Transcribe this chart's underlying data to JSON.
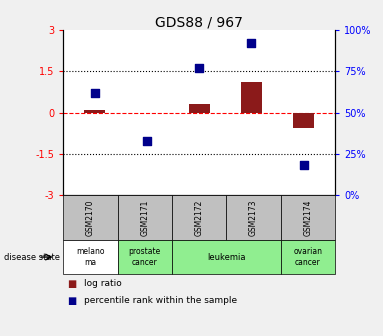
{
  "title": "GDS88 / 967",
  "samples": [
    "GSM2170",
    "GSM2171",
    "GSM2172",
    "GSM2173",
    "GSM2174"
  ],
  "log_ratios": [
    0.1,
    0.0,
    0.3,
    1.1,
    -0.55
  ],
  "percentile_ranks": [
    62,
    33,
    77,
    92,
    18
  ],
  "ylim_left": [
    -3,
    3
  ],
  "ylim_right": [
    0,
    100
  ],
  "yticks_left": [
    -3,
    -1.5,
    0,
    1.5,
    3
  ],
  "yticks_right": [
    0,
    25,
    50,
    75,
    100
  ],
  "ytick_labels_left": [
    "-3",
    "-1.5",
    "0",
    "1.5",
    "3"
  ],
  "ytick_labels_right": [
    "0%",
    "25%",
    "50%",
    "75%",
    "100%"
  ],
  "hlines": [
    1.5,
    -1.5
  ],
  "bar_color": "#8B1A1A",
  "dot_color": "#00008B",
  "bar_width": 0.4,
  "dot_size": 35,
  "background_color": "#F0F0F0",
  "plot_bg": "#FFFFFF",
  "melanoma_color": "#FFFFFF",
  "green_color": "#90EE90",
  "gray_color": "#C0C0C0",
  "disease_states": [
    {
      "label": "melano\nma",
      "start": 0,
      "end": 0,
      "color": "#FFFFFF"
    },
    {
      "label": "prostate\ncancer",
      "start": 1,
      "end": 1,
      "color": "#90EE90"
    },
    {
      "label": "leukemia",
      "start": 2,
      "end": 3,
      "color": "#90EE90"
    },
    {
      "label": "ovarian\ncancer",
      "start": 4,
      "end": 4,
      "color": "#90EE90"
    }
  ]
}
